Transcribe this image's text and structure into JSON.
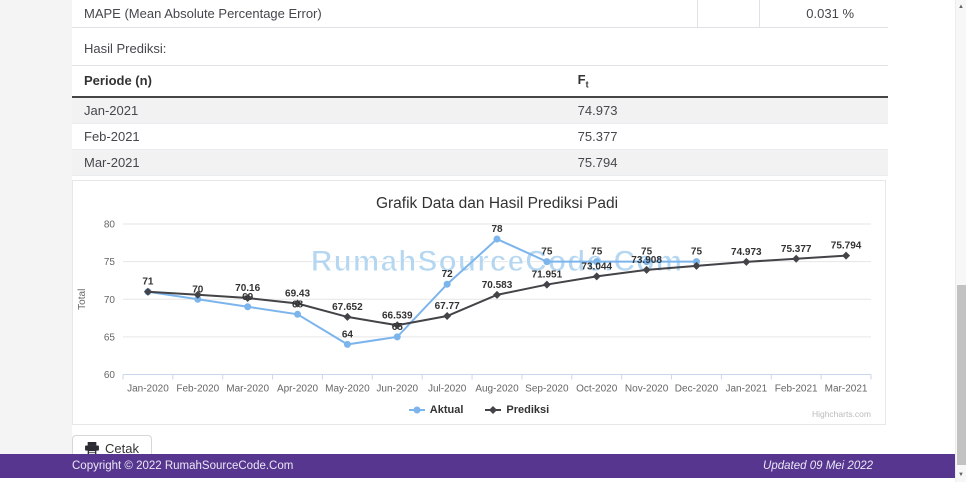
{
  "theme": {
    "footer_bg": "#56368f",
    "stripe_bg": "#f2f2f2"
  },
  "mape_row": {
    "label": "MAPE (Mean Absolute Percentage Error)",
    "value": "0.031 %"
  },
  "section_label": "Hasil Prediksi:",
  "prediction_table": {
    "col_periode": "Periode (n)",
    "col_ft_base": "F",
    "col_ft_sub": "t",
    "rows": [
      {
        "periode": "Jan-2021",
        "ft": "74.973"
      },
      {
        "periode": "Feb-2021",
        "ft": "75.377"
      },
      {
        "periode": "Mar-2021",
        "ft": "75.794"
      }
    ]
  },
  "chart_data": {
    "type": "line",
    "title": "Grafik Data dan Hasil Prediksi Padi",
    "watermark": "RumahSourceCode.Com",
    "xlabel": "",
    "ylabel": "Total",
    "ylim": [
      60,
      80
    ],
    "yticks": [
      60,
      65,
      70,
      75,
      80
    ],
    "grid": true,
    "legend_position": "bottom",
    "credits": "Highcharts.com",
    "categories": [
      "Jan-2020",
      "Feb-2020",
      "Mar-2020",
      "Apr-2020",
      "May-2020",
      "Jun-2020",
      "Jul-2020",
      "Aug-2020",
      "Sep-2020",
      "Oct-2020",
      "Nov-2020",
      "Dec-2020",
      "Jan-2021",
      "Feb-2021",
      "Mar-2021"
    ],
    "series": [
      {
        "name": "Aktual",
        "color": "#7cb5ec",
        "marker": "circle",
        "values": [
          71,
          70,
          69,
          68,
          64,
          65,
          72,
          78,
          75,
          75,
          75,
          75,
          null,
          null,
          null
        ],
        "labels": [
          null,
          "70",
          "69",
          "68",
          "64",
          "65",
          "72",
          "78",
          "75",
          "75",
          "75",
          "75",
          null,
          null,
          null
        ]
      },
      {
        "name": "Prediksi",
        "color": "#434348",
        "marker": "diamond",
        "values": [
          71,
          70.6,
          70.16,
          69.43,
          67.652,
          66.539,
          67.77,
          70.583,
          71.951,
          73.044,
          73.908,
          74.44,
          74.973,
          75.377,
          75.794
        ],
        "labels": [
          "71",
          null,
          "70.16",
          "69.43",
          "67.652",
          "66.539",
          "67.77",
          "70.583",
          "71.951",
          "73.044",
          "73.908",
          null,
          "74.973",
          "75.377",
          "75.794"
        ]
      }
    ]
  },
  "print_button": {
    "label": "Cetak"
  },
  "footer": {
    "copyright": "Copyright © 2022 RumahSourceCode.Com",
    "updated": "Updated 09 Mei 2022"
  }
}
